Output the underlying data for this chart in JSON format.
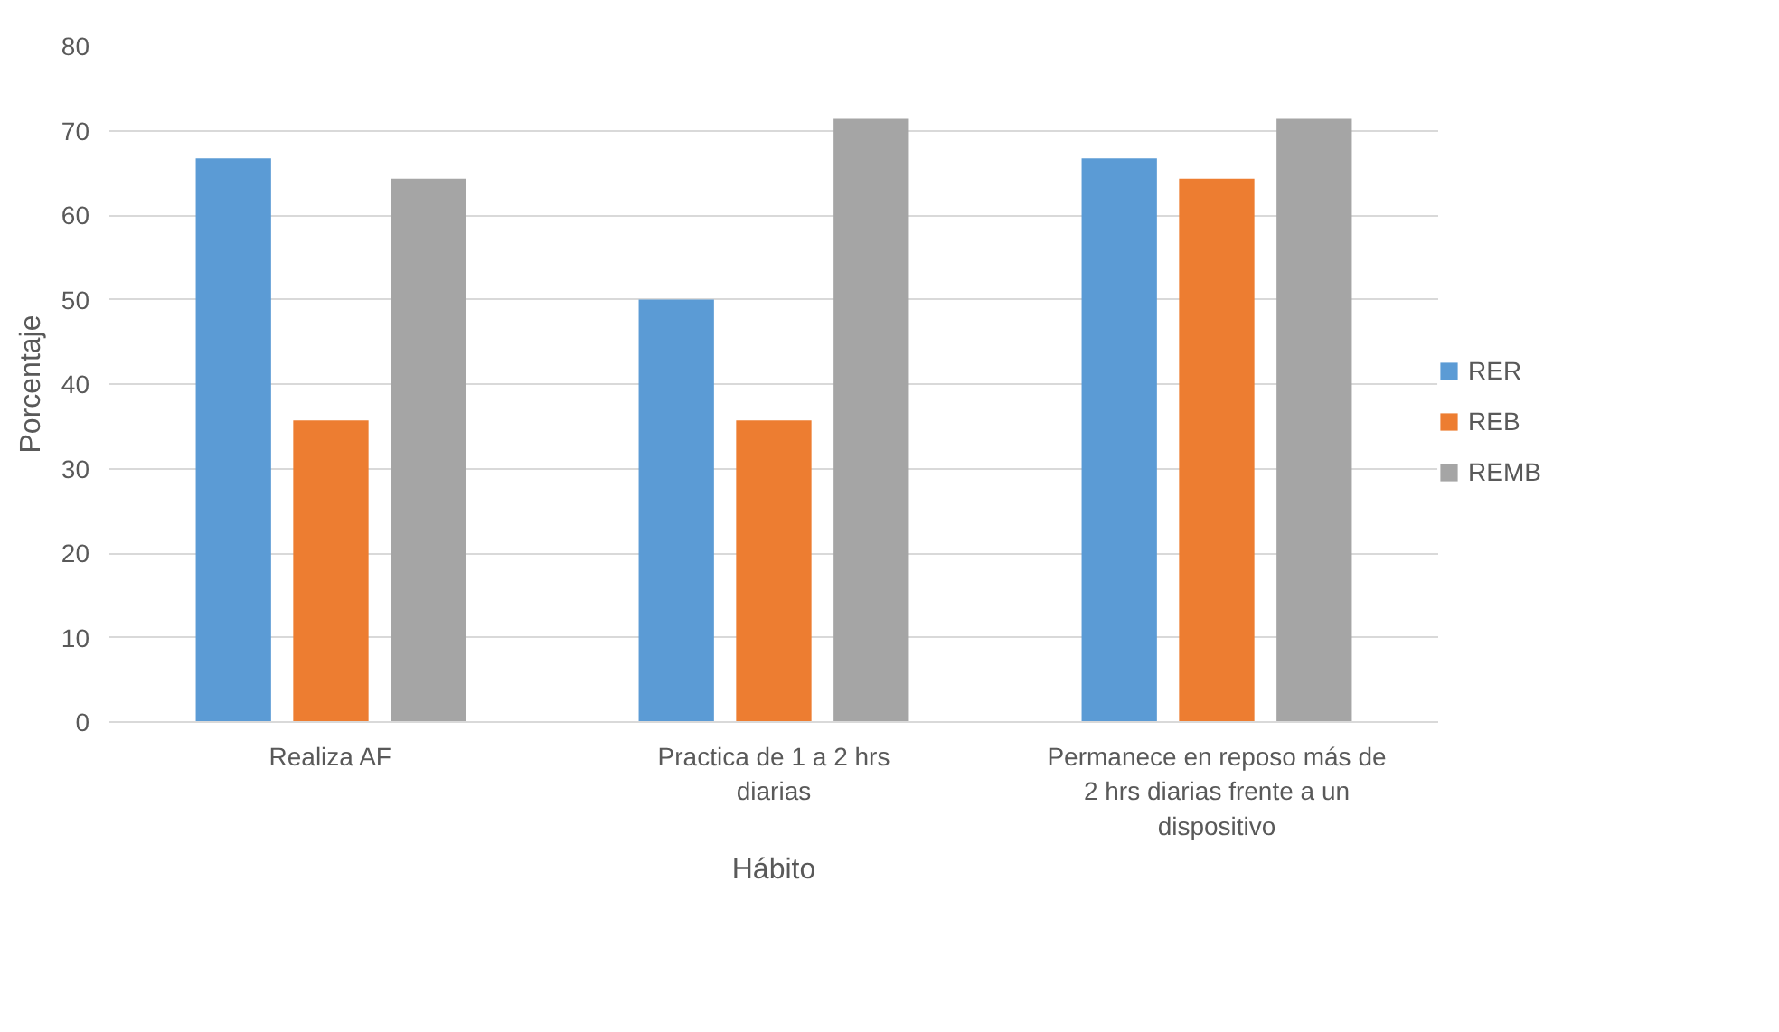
{
  "chart_data": {
    "type": "bar",
    "xlabel": "Hábito",
    "ylabel": "Porcentaje",
    "categories": [
      "Realiza AF",
      "Practica de 1 a 2 hrs diarias",
      "Permanece en reposo más de 2 hrs diarias frente a un dispositivo"
    ],
    "series": [
      {
        "name": "RER",
        "color": "#5b9bd5",
        "values": [
          66.7,
          50,
          66.7
        ]
      },
      {
        "name": "REB",
        "color": "#ed7d31",
        "values": [
          35.7,
          35.7,
          64.3
        ]
      },
      {
        "name": "REMB",
        "color": "#a5a5a5",
        "values": [
          64.3,
          71.4,
          71.4
        ]
      }
    ],
    "ylim": [
      0,
      80
    ],
    "yticks": [
      0,
      10,
      20,
      30,
      40,
      50,
      60,
      70,
      80
    ],
    "grid": "y",
    "legend": "right"
  }
}
